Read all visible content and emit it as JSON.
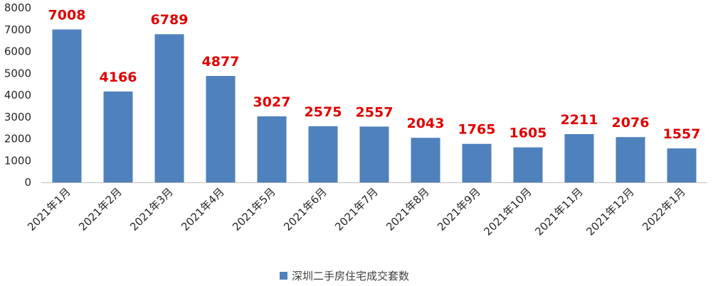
{
  "chart_data": {
    "type": "bar",
    "categories": [
      "2021年1月",
      "2021年2月",
      "2021年3月",
      "2021年4月",
      "2021年5月",
      "2021年6月",
      "2021年7月",
      "2021年8月",
      "2021年9月",
      "2021年10月",
      "2021年11月",
      "2021年12月",
      "2022年1月"
    ],
    "series": [
      {
        "name": "深圳二手房住宅成交套数",
        "values": [
          7008,
          4166,
          6789,
          4877,
          3027,
          2575,
          2557,
          2043,
          1765,
          1605,
          2211,
          2076,
          1557
        ]
      }
    ],
    "title": "",
    "xlabel": "",
    "ylabel": "",
    "ylim": [
      0,
      8000
    ],
    "yticks": [
      0,
      1000,
      2000,
      3000,
      4000,
      5000,
      6000,
      7000,
      8000
    ],
    "grid": false,
    "legend": "bottom",
    "data_labels": true
  },
  "colors": {
    "bar": "#4f81bd",
    "data_label": "#e00000",
    "axis": "#bfbfbf"
  }
}
